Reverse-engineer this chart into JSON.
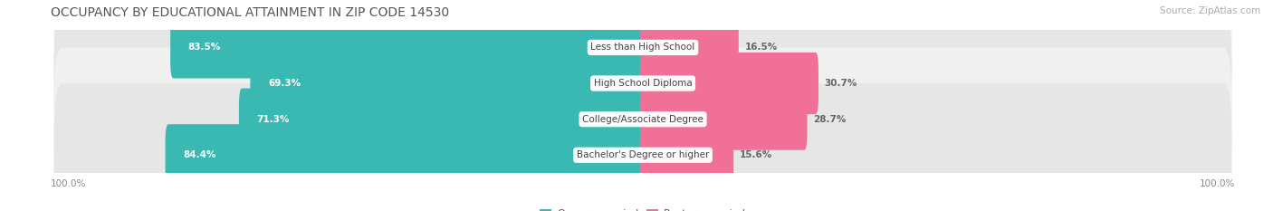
{
  "title": "OCCUPANCY BY EDUCATIONAL ATTAINMENT IN ZIP CODE 14530",
  "source": "Source: ZipAtlas.com",
  "categories": [
    "Less than High School",
    "High School Diploma",
    "College/Associate Degree",
    "Bachelor's Degree or higher"
  ],
  "owner_pct": [
    83.5,
    69.3,
    71.3,
    84.4
  ],
  "renter_pct": [
    16.5,
    30.7,
    28.7,
    15.6
  ],
  "owner_color": "#3ab8b2",
  "renter_color": "#f07098",
  "row_bg_colors": [
    "#f0f0f0",
    "#e6e6e6",
    "#f0f0f0",
    "#e6e6e6"
  ],
  "title_fontsize": 10,
  "source_fontsize": 7.5,
  "bar_label_fontsize": 7.5,
  "cat_label_fontsize": 7.5,
  "axis_label_fontsize": 7.5,
  "legend_fontsize": 8,
  "fig_width": 14.06,
  "fig_height": 2.33,
  "dpi": 100
}
